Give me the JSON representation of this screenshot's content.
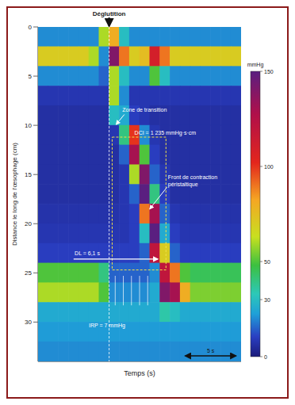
{
  "chart_data": {
    "type": "heatmap",
    "title": "Déglutition",
    "x_label": "Temps (s)",
    "y_label": "Distance le long de l'œsophage (cm)",
    "xlim": [
      0,
      20
    ],
    "ylim": [
      0,
      34
    ],
    "yticks": [
      0,
      5,
      10,
      15,
      20,
      25,
      30
    ],
    "tick_labels": "y",
    "x": [
      0.5,
      1.5,
      2.5,
      3.5,
      4.5,
      5.5,
      6.5,
      7.5,
      8.5,
      9.5,
      10.5,
      11.5,
      12.5,
      13.5,
      14.5,
      15.5,
      16.5,
      17.5,
      18.5,
      19.5
    ],
    "y": [
      1,
      3,
      5,
      7,
      9,
      11,
      13,
      15,
      17,
      19,
      21,
      23,
      25,
      27,
      29,
      31,
      33
    ],
    "cells": [
      [
        20,
        20,
        20,
        20,
        20,
        20,
        60,
        80,
        30,
        20,
        20,
        20,
        20,
        20,
        20,
        20,
        20,
        20,
        20,
        20
      ],
      [
        70,
        70,
        70,
        70,
        70,
        60,
        20,
        140,
        90,
        70,
        75,
        110,
        90,
        70,
        70,
        70,
        70,
        70,
        70,
        70
      ],
      [
        20,
        20,
        20,
        20,
        20,
        20,
        15,
        60,
        30,
        20,
        20,
        50,
        30,
        20,
        20,
        20,
        20,
        20,
        20,
        20
      ],
      [
        8,
        8,
        8,
        8,
        8,
        8,
        8,
        60,
        20,
        8,
        8,
        8,
        8,
        8,
        8,
        8,
        8,
        8,
        8,
        8
      ],
      [
        6,
        6,
        6,
        6,
        6,
        6,
        6,
        30,
        25,
        10,
        8,
        6,
        6,
        6,
        6,
        6,
        6,
        6,
        6,
        6
      ],
      [
        6,
        6,
        6,
        6,
        6,
        6,
        6,
        8,
        40,
        100,
        20,
        8,
        6,
        6,
        6,
        6,
        6,
        6,
        6,
        6
      ],
      [
        6,
        6,
        6,
        6,
        6,
        6,
        6,
        6,
        15,
        130,
        50,
        10,
        6,
        6,
        6,
        6,
        6,
        6,
        6,
        6
      ],
      [
        6,
        6,
        6,
        6,
        6,
        6,
        6,
        6,
        8,
        60,
        140,
        15,
        8,
        6,
        6,
        6,
        6,
        6,
        6,
        6
      ],
      [
        6,
        6,
        6,
        6,
        6,
        6,
        6,
        6,
        8,
        15,
        150,
        40,
        10,
        6,
        6,
        6,
        6,
        6,
        6,
        6
      ],
      [
        7,
        7,
        7,
        7,
        7,
        7,
        7,
        7,
        8,
        10,
        90,
        130,
        15,
        8,
        7,
        7,
        7,
        7,
        7,
        7
      ],
      [
        8,
        8,
        8,
        8,
        8,
        8,
        8,
        8,
        8,
        10,
        30,
        150,
        25,
        10,
        8,
        8,
        8,
        8,
        8,
        8
      ],
      [
        10,
        10,
        10,
        10,
        10,
        10,
        10,
        10,
        10,
        10,
        15,
        120,
        70,
        15,
        10,
        10,
        10,
        10,
        10,
        10
      ],
      [
        50,
        50,
        50,
        50,
        50,
        50,
        40,
        15,
        15,
        15,
        15,
        20,
        120,
        90,
        50,
        45,
        45,
        45,
        45,
        45
      ],
      [
        60,
        60,
        60,
        60,
        60,
        60,
        50,
        20,
        20,
        20,
        20,
        25,
        140,
        130,
        80,
        55,
        55,
        55,
        55,
        55
      ],
      [
        25,
        25,
        25,
        25,
        25,
        25,
        25,
        25,
        25,
        25,
        25,
        25,
        35,
        30,
        25,
        25,
        25,
        25,
        25,
        25
      ],
      [
        22,
        22,
        22,
        22,
        22,
        22,
        22,
        22,
        22,
        22,
        22,
        22,
        22,
        22,
        22,
        22,
        22,
        22,
        22,
        22
      ],
      [
        20,
        20,
        20,
        20,
        20,
        20,
        20,
        20,
        20,
        20,
        20,
        20,
        20,
        20,
        20,
        20,
        20,
        20,
        20,
        20
      ]
    ],
    "colorbar": {
      "label": "mmHg",
      "range": [
        0,
        150
      ],
      "ticks": [
        0,
        30,
        50,
        100,
        150
      ]
    },
    "annotations": [
      "Zone de transition",
      "DCI = 1 235 mmHg·s·cm",
      "Front de contraction péristaltique",
      "DL = 6,1 s",
      "IRP = 7 mmHg"
    ],
    "scale_bar": {
      "value": 5,
      "label": "5 s"
    }
  }
}
